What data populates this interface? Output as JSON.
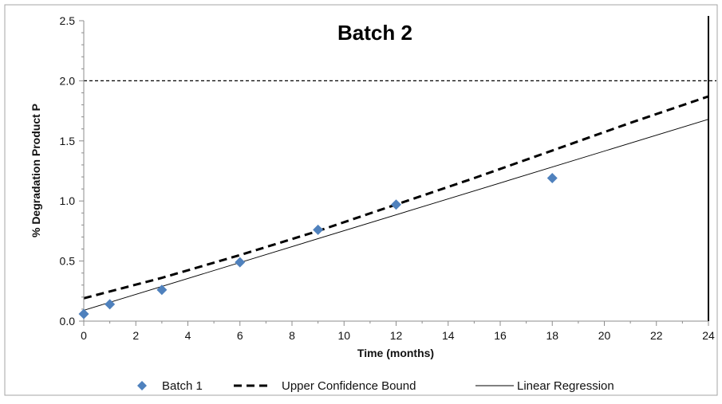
{
  "chart_data": {
    "type": "scatter",
    "title": "Batch 2",
    "xlabel": "Time (months)",
    "ylabel": "% Degradation Product P",
    "xlim": [
      0,
      24
    ],
    "ylim": [
      0,
      2.5
    ],
    "x_ticks": [
      "0",
      "2",
      "4",
      "6",
      "8",
      "10",
      "12",
      "14",
      "16",
      "18",
      "20",
      "22",
      "24"
    ],
    "x_tick_values": [
      0,
      2,
      4,
      6,
      8,
      10,
      12,
      14,
      16,
      18,
      20,
      22,
      24
    ],
    "y_ticks": [
      "0.0",
      "0.5",
      "1.0",
      "1.5",
      "2.0",
      "2.5"
    ],
    "y_tick_values": [
      0,
      0.5,
      1.0,
      1.5,
      2.0,
      2.5
    ],
    "grid": false,
    "legend_position": "bottom",
    "series": [
      {
        "name": "Batch 1",
        "kind": "points",
        "marker": "diamond",
        "color": "#4F81BD",
        "points": [
          {
            "x": 0,
            "y": 0.06
          },
          {
            "x": 1,
            "y": 0.14
          },
          {
            "x": 3,
            "y": 0.26
          },
          {
            "x": 6,
            "y": 0.49
          },
          {
            "x": 9,
            "y": 0.76
          },
          {
            "x": 12,
            "y": 0.97
          },
          {
            "x": 18,
            "y": 1.19
          }
        ]
      },
      {
        "name": "Upper Confidence Bound",
        "kind": "line",
        "style": "dashed-bold",
        "color": "#000000",
        "points": [
          {
            "x": 0,
            "y": 0.19
          },
          {
            "x": 3,
            "y": 0.36
          },
          {
            "x": 6,
            "y": 0.55
          },
          {
            "x": 9,
            "y": 0.75
          },
          {
            "x": 12,
            "y": 0.97
          },
          {
            "x": 15,
            "y": 1.19
          },
          {
            "x": 18,
            "y": 1.42
          },
          {
            "x": 21,
            "y": 1.65
          },
          {
            "x": 24,
            "y": 1.87
          }
        ]
      },
      {
        "name": "Linear Regression",
        "kind": "line",
        "style": "solid-thin",
        "color": "#000000",
        "points": [
          {
            "x": 0,
            "y": 0.09
          },
          {
            "x": 24,
            "y": 1.68
          }
        ]
      }
    ],
    "reference_lines": [
      {
        "orientation": "horizontal",
        "value": 2.0,
        "style": "dashed-thin",
        "color": "#000000"
      },
      {
        "orientation": "vertical",
        "value": 24,
        "style": "solid-bold",
        "color": "#000000"
      }
    ]
  }
}
